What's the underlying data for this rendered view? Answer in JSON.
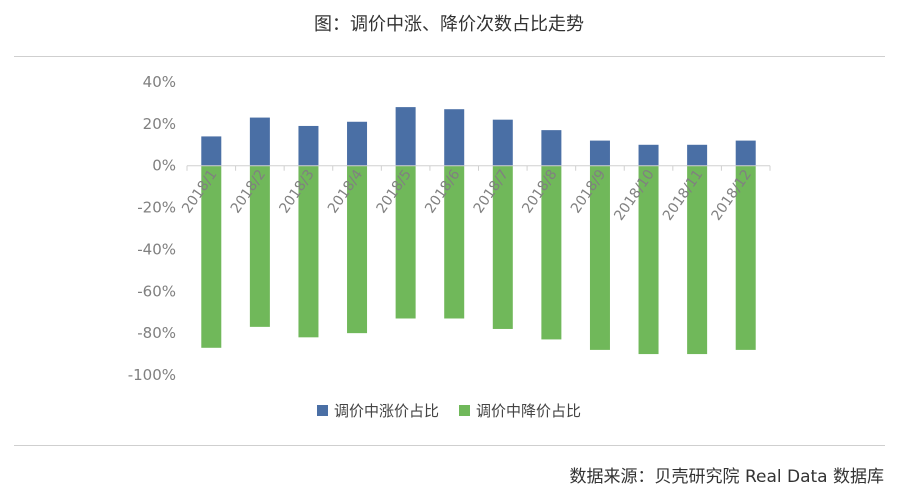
{
  "header": {
    "title": "图：调价中涨、降价次数占比走势"
  },
  "footer": {
    "source": "数据来源：贝壳研究院 Real Data 数据库"
  },
  "colors": {
    "rise": "#4a6fa5",
    "fall": "#70b85a",
    "axis": "#d0d0d0",
    "text": "#808080"
  },
  "chart_data": {
    "type": "bar",
    "title": "图：调价中涨、降价次数占比走势",
    "categories": [
      "2018/1",
      "2018/2",
      "2018/3",
      "2018/4",
      "2018/5",
      "2018/6",
      "2018/7",
      "2018/8",
      "2018/9",
      "2018/10",
      "2018/11",
      "2018/12"
    ],
    "series": [
      {
        "name": "调价中涨价占比",
        "values": [
          14,
          23,
          19,
          21,
          28,
          27,
          22,
          17,
          12,
          10,
          10,
          12
        ]
      },
      {
        "name": "调价中降价占比",
        "values": [
          -87,
          -77,
          -82,
          -80,
          -73,
          -73,
          -78,
          -83,
          -88,
          -90,
          -90,
          -88
        ]
      }
    ],
    "yticks": [
      "40%",
      "20%",
      "0%",
      "-20%",
      "-40%",
      "-60%",
      "-80%",
      "-100%"
    ],
    "ylim": [
      -100,
      40
    ],
    "xlabel": "",
    "ylabel": "",
    "legend": "bottom",
    "grid": false
  }
}
